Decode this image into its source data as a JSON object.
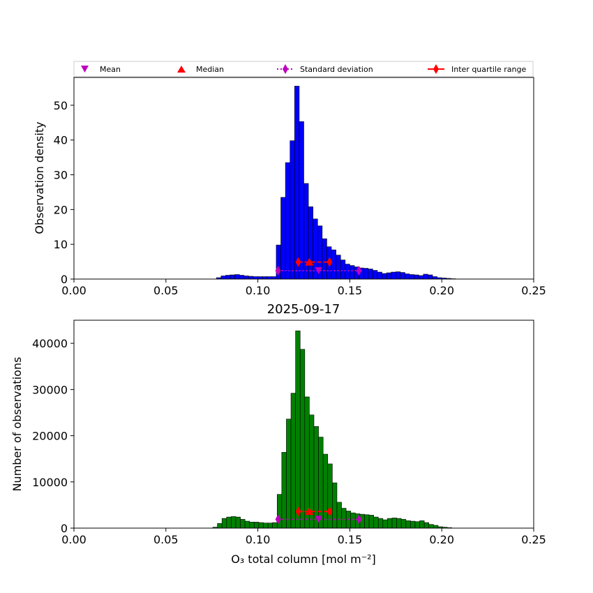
{
  "legend": {
    "items": [
      {
        "label": "Mean",
        "color": "#bf00bf",
        "marker": "triangle-down"
      },
      {
        "label": "Median",
        "color": "#ff0000",
        "marker": "triangle-up"
      },
      {
        "label": "Standard deviation",
        "color": "#bf00bf",
        "marker": "thin-diamond-dotted-line"
      },
      {
        "label": "Inter quartile range",
        "color": "#ff0000",
        "marker": "thin-diamond-dashed-line"
      }
    ]
  },
  "chart_data": [
    {
      "type": "bar",
      "ylabel": "Observation density",
      "xlim": [
        0,
        0.25
      ],
      "ylim": [
        0,
        58
      ],
      "xticks": [
        "0.00",
        "0.05",
        "0.10",
        "0.15",
        "0.20",
        "0.25"
      ],
      "yticks": [
        "0",
        "10",
        "20",
        "30",
        "40",
        "50"
      ],
      "bar_color": "#0000ff",
      "bin_width": 0.0025,
      "bin_start": 0.0775,
      "values": [
        0.4,
        0.9,
        1.1,
        1.2,
        1.3,
        1.1,
        0.9,
        0.8,
        0.7,
        0.7,
        0.7,
        0.7,
        0.7,
        9.8,
        23.5,
        33.5,
        39.8,
        55.5,
        45.3,
        27.5,
        20.8,
        17.3,
        15.3,
        11.6,
        9.3,
        8.4,
        6.9,
        5.5,
        4.3,
        3.9,
        3.5,
        3.2,
        3.1,
        2.9,
        2.5,
        2.0,
        1.6,
        1.8,
        2.0,
        2.1,
        1.9,
        1.5,
        1.3,
        1.2,
        1.0,
        1.4,
        1.2,
        0.7,
        0.4,
        0.3,
        0.2,
        0.1
      ],
      "stats": {
        "mean": 0.133,
        "median": 0.128,
        "std_low": 0.111,
        "std_high": 0.155,
        "iqr_low": 0.122,
        "iqr_high": 0.139,
        "mean_y": 2.4,
        "median_y": 4.9,
        "std_y": 2.4,
        "iqr_y": 4.9
      }
    },
    {
      "type": "bar",
      "title": "2025-09-17",
      "xlabel": "O₃ total column [mol m⁻²]",
      "ylabel": "Number of observations",
      "xlim": [
        0,
        0.25
      ],
      "ylim": [
        0,
        45000
      ],
      "xticks": [
        "0.00",
        "0.05",
        "0.10",
        "0.15",
        "0.20",
        "0.25"
      ],
      "yticks": [
        "0",
        "10000",
        "20000",
        "30000",
        "40000"
      ],
      "bar_color": "#008000",
      "bin_width": 0.0025,
      "bin_start": 0.0755,
      "values": [
        200,
        1000,
        2100,
        2400,
        2500,
        2400,
        1900,
        1500,
        1300,
        1300,
        1200,
        1100,
        1100,
        1200,
        7300,
        16400,
        23600,
        29200,
        42700,
        38700,
        28400,
        24500,
        22000,
        19700,
        16000,
        13900,
        9800,
        5600,
        4300,
        3700,
        3300,
        3100,
        3000,
        2900,
        2800,
        2400,
        2100,
        1800,
        2100,
        2200,
        2100,
        1900,
        1600,
        1500,
        1400,
        1600,
        1200,
        800,
        600,
        300,
        200,
        100
      ],
      "stats": {
        "mean": 0.133,
        "median": 0.128,
        "std_low": 0.111,
        "std_high": 0.155,
        "iqr_low": 0.122,
        "iqr_high": 0.139,
        "mean_y": 1900,
        "median_y": 3600,
        "std_y": 1900,
        "iqr_y": 3600
      }
    }
  ]
}
